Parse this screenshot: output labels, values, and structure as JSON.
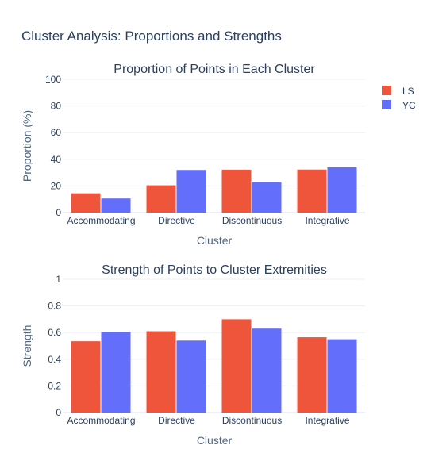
{
  "title": "Cluster Analysis: Proportions and Strengths",
  "colors": {
    "LS": "#EF553B",
    "YC": "#636EFA"
  },
  "legend": {
    "position": "top-right",
    "items": [
      "LS",
      "YC"
    ]
  },
  "chart_data": [
    {
      "type": "bar",
      "title": "Proportion of Points in Each Cluster",
      "xlabel": "Cluster",
      "ylabel": "Proportion (%)",
      "categories": [
        "Accommodating",
        "Directive",
        "Discontinuous",
        "Integrative"
      ],
      "ylim": [
        0,
        100
      ],
      "yticks": [
        "0",
        "20",
        "40",
        "60",
        "80",
        "100"
      ],
      "ytick_values": [
        0,
        20,
        40,
        60,
        80,
        100
      ],
      "grid": true,
      "series": [
        {
          "name": "LS",
          "values": [
            14.5,
            20.5,
            32.2,
            32.3
          ]
        },
        {
          "name": "YC",
          "values": [
            10.6,
            32.0,
            23.1,
            34.0
          ]
        }
      ]
    },
    {
      "type": "bar",
      "title": "Strength of Points to Cluster Extremities",
      "xlabel": "Cluster",
      "ylabel": "Strength",
      "categories": [
        "Accommodating",
        "Directive",
        "Discontinuous",
        "Integrative"
      ],
      "ylim": [
        0,
        1
      ],
      "yticks": [
        "0",
        "0.2",
        "0.4",
        "0.6",
        "0.8",
        "1"
      ],
      "ytick_values": [
        0,
        0.2,
        0.4,
        0.6,
        0.8,
        1
      ],
      "grid": true,
      "series": [
        {
          "name": "LS",
          "values": [
            0.535,
            0.61,
            0.7,
            0.565
          ]
        },
        {
          "name": "YC",
          "values": [
            0.605,
            0.54,
            0.63,
            0.55
          ]
        }
      ]
    }
  ]
}
